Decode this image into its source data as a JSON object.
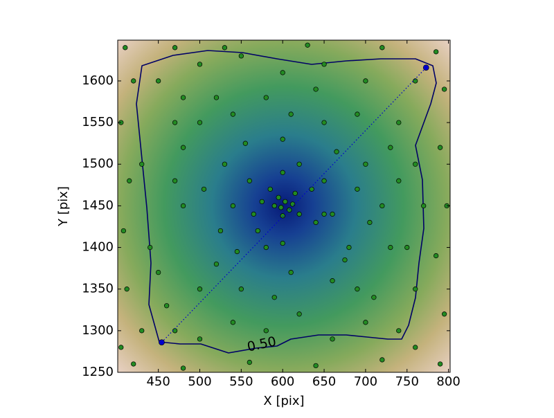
{
  "chart_data": {
    "type": "scatter",
    "xlabel": "X [pix]",
    "ylabel": "Y [pix]",
    "xlim": [
      401,
      802
    ],
    "ylim": [
      1250,
      1649
    ],
    "xticks": [
      450,
      500,
      550,
      600,
      650,
      700,
      750,
      800
    ],
    "yticks": [
      1250,
      1300,
      1350,
      1400,
      1450,
      1500,
      1550,
      1600
    ],
    "points": {
      "color": "#228b22",
      "x": [
        603,
        598,
        608,
        595,
        612,
        600,
        590,
        615,
        620,
        585,
        560,
        640,
        570,
        650,
        540,
        660,
        580,
        620,
        530,
        680,
        500,
        700,
        520,
        690,
        480,
        720,
        550,
        650,
        600,
        610,
        450,
        470,
        430,
        440,
        460,
        470,
        500,
        540,
        580,
        620,
        660,
        700,
        740,
        760,
        750,
        770,
        760,
        740,
        760,
        700,
        650,
        600,
        550,
        500,
        480,
        520,
        580,
        640,
        690,
        730,
        410,
        420,
        405,
        415,
        408,
        412,
        405,
        420,
        480,
        560,
        640,
        720,
        790,
        795,
        785,
        798,
        790,
        795,
        785,
        720,
        630,
        530,
        470,
        555,
        665,
        545,
        675,
        505,
        705,
        600,
        600,
        635,
        565,
        525,
        690,
        470,
        730,
        610,
        590,
        500,
        710,
        480,
        740,
        450,
        760,
        430,
        660,
        540,
        650,
        575
      ],
      "y": [
        1455,
        1448,
        1445,
        1460,
        1452,
        1438,
        1450,
        1465,
        1440,
        1470,
        1480,
        1430,
        1420,
        1480,
        1450,
        1440,
        1400,
        1500,
        1500,
        1400,
        1550,
        1500,
        1380,
        1350,
        1450,
        1450,
        1350,
        1550,
        1530,
        1370,
        1600,
        1550,
        1500,
        1400,
        1330,
        1300,
        1290,
        1310,
        1300,
        1320,
        1290,
        1310,
        1300,
        1350,
        1400,
        1450,
        1500,
        1550,
        1600,
        1600,
        1620,
        1610,
        1630,
        1620,
        1580,
        1580,
        1580,
        1590,
        1560,
        1520,
        1640,
        1600,
        1550,
        1480,
        1420,
        1350,
        1280,
        1260,
        1255,
        1262,
        1258,
        1265,
        1260,
        1320,
        1390,
        1450,
        1520,
        1590,
        1635,
        1640,
        1643,
        1640,
        1640,
        1525,
        1515,
        1395,
        1385,
        1470,
        1430,
        1490,
        1405,
        1470,
        1440,
        1420,
        1470,
        1480,
        1400,
        1560,
        1340,
        1350,
        1340,
        1520,
        1480,
        1370,
        1280,
        1300,
        1360,
        1560,
        1440,
        1455
      ]
    },
    "segment": {
      "color": "#0000cc",
      "x": [
        454,
        773
      ],
      "y": [
        1286,
        1616
      ]
    },
    "contour": {
      "value": 0.5,
      "label": "0.50",
      "color": "#000066"
    }
  }
}
